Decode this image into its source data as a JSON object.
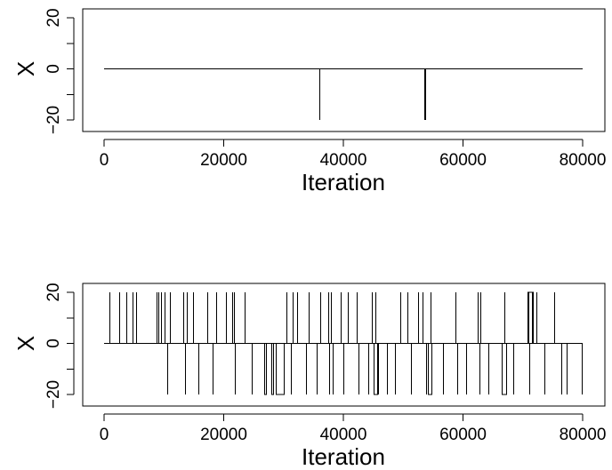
{
  "chart_data": [
    {
      "type": "line",
      "title": "",
      "xlabel": "Iteration",
      "ylabel": "X",
      "xlim": [
        0,
        80000
      ],
      "ylim": [
        -20,
        20
      ],
      "x_ticks": [
        0,
        20000,
        40000,
        60000,
        80000
      ],
      "y_ticks": [
        -20,
        0,
        20
      ],
      "x_tick_labels": [
        "0",
        "20000",
        "40000",
        "60000",
        "80000"
      ],
      "y_tick_labels": [
        "−20",
        "0",
        "20"
      ],
      "grid": false,
      "baseline": 0,
      "spikes": [
        {
          "x": 36000,
          "y": -20
        },
        {
          "x": 53600,
          "y": -20
        },
        {
          "x": 53750,
          "y": -20
        }
      ]
    },
    {
      "type": "line",
      "title": "",
      "xlabel": "Iteration",
      "ylabel": "X",
      "xlim": [
        0,
        80000
      ],
      "ylim": [
        -20,
        20
      ],
      "x_ticks": [
        0,
        20000,
        40000,
        60000,
        80000
      ],
      "y_ticks": [
        -20,
        0,
        20
      ],
      "x_tick_labels": [
        "0",
        "20000",
        "40000",
        "60000",
        "80000"
      ],
      "y_tick_labels": [
        "−20",
        "0",
        "20"
      ],
      "grid": false,
      "baseline": 0,
      "spikes": [
        {
          "x": 900,
          "y": 20
        },
        {
          "x": 2600,
          "y": 20
        },
        {
          "x": 3700,
          "y": 20
        },
        {
          "x": 4700,
          "y": 20
        },
        {
          "x": 5300,
          "y": 20
        },
        {
          "x": 8700,
          "y": 20
        },
        {
          "x": 9100,
          "y": 20
        },
        {
          "x": 9500,
          "y": 20
        },
        {
          "x": 10100,
          "y": 20
        },
        {
          "x": 11000,
          "y": 20
        },
        {
          "x": 13200,
          "y": 20
        },
        {
          "x": 13800,
          "y": 20
        },
        {
          "x": 14900,
          "y": 20
        },
        {
          "x": 17300,
          "y": 20
        },
        {
          "x": 18800,
          "y": 20
        },
        {
          "x": 20300,
          "y": 20
        },
        {
          "x": 21400,
          "y": 20
        },
        {
          "x": 21700,
          "y": 20
        },
        {
          "x": 23500,
          "y": 20
        },
        {
          "x": 30500,
          "y": 20
        },
        {
          "x": 31500,
          "y": 20
        },
        {
          "x": 32200,
          "y": 20
        },
        {
          "x": 34200,
          "y": 20
        },
        {
          "x": 36100,
          "y": 20
        },
        {
          "x": 37400,
          "y": 20
        },
        {
          "x": 37900,
          "y": 20
        },
        {
          "x": 39500,
          "y": 20
        },
        {
          "x": 40800,
          "y": 20
        },
        {
          "x": 42200,
          "y": 20
        },
        {
          "x": 44700,
          "y": 20
        },
        {
          "x": 45300,
          "y": 20
        },
        {
          "x": 49500,
          "y": 20
        },
        {
          "x": 50700,
          "y": 20
        },
        {
          "x": 52500,
          "y": 20
        },
        {
          "x": 53300,
          "y": 20
        },
        {
          "x": 54600,
          "y": 20
        },
        {
          "x": 58800,
          "y": 20
        },
        {
          "x": 62400,
          "y": 20
        },
        {
          "x": 62900,
          "y": 20
        },
        {
          "x": 66900,
          "y": 20
        },
        {
          "x": 70900,
          "y": 20
        },
        {
          "x": 71500,
          "y": 20
        },
        {
          "x": 72300,
          "y": 20
        },
        {
          "x": 75200,
          "y": 20
        },
        {
          "x": 10600,
          "y": -20
        },
        {
          "x": 13500,
          "y": -20
        },
        {
          "x": 15800,
          "y": -20
        },
        {
          "x": 18200,
          "y": -20
        },
        {
          "x": 21800,
          "y": -20
        },
        {
          "x": 24700,
          "y": -20
        },
        {
          "x": 30100,
          "y": -20
        },
        {
          "x": 31200,
          "y": -20
        },
        {
          "x": 33700,
          "y": -20
        },
        {
          "x": 35600,
          "y": -20
        },
        {
          "x": 37600,
          "y": -20
        },
        {
          "x": 38200,
          "y": -20
        },
        {
          "x": 40000,
          "y": -20
        },
        {
          "x": 42600,
          "y": -20
        },
        {
          "x": 44200,
          "y": -20
        },
        {
          "x": 45800,
          "y": -20
        },
        {
          "x": 47300,
          "y": -20
        },
        {
          "x": 48600,
          "y": -20
        },
        {
          "x": 51300,
          "y": -20
        },
        {
          "x": 53900,
          "y": -20
        },
        {
          "x": 56700,
          "y": -20
        },
        {
          "x": 59000,
          "y": -20
        },
        {
          "x": 60500,
          "y": -20
        },
        {
          "x": 62700,
          "y": -20
        },
        {
          "x": 64300,
          "y": -20
        },
        {
          "x": 68400,
          "y": -20
        },
        {
          "x": 71100,
          "y": -20
        },
        {
          "x": 73600,
          "y": -20
        },
        {
          "x": 76400,
          "y": -20
        },
        {
          "x": 77300,
          "y": -20
        },
        {
          "x": 79900,
          "y": -20
        }
      ],
      "segments": [
        {
          "start": 26800,
          "end": 27100,
          "y": -20
        },
        {
          "start": 28000,
          "end": 28300,
          "y": -20
        },
        {
          "start": 28700,
          "end": 30100,
          "y": -20
        },
        {
          "start": 45100,
          "end": 45600,
          "y": -20
        },
        {
          "start": 54100,
          "end": 54700,
          "y": -20
        },
        {
          "start": 66500,
          "end": 67200,
          "y": -20
        },
        {
          "start": 70800,
          "end": 71600,
          "y": 20
        }
      ]
    }
  ]
}
